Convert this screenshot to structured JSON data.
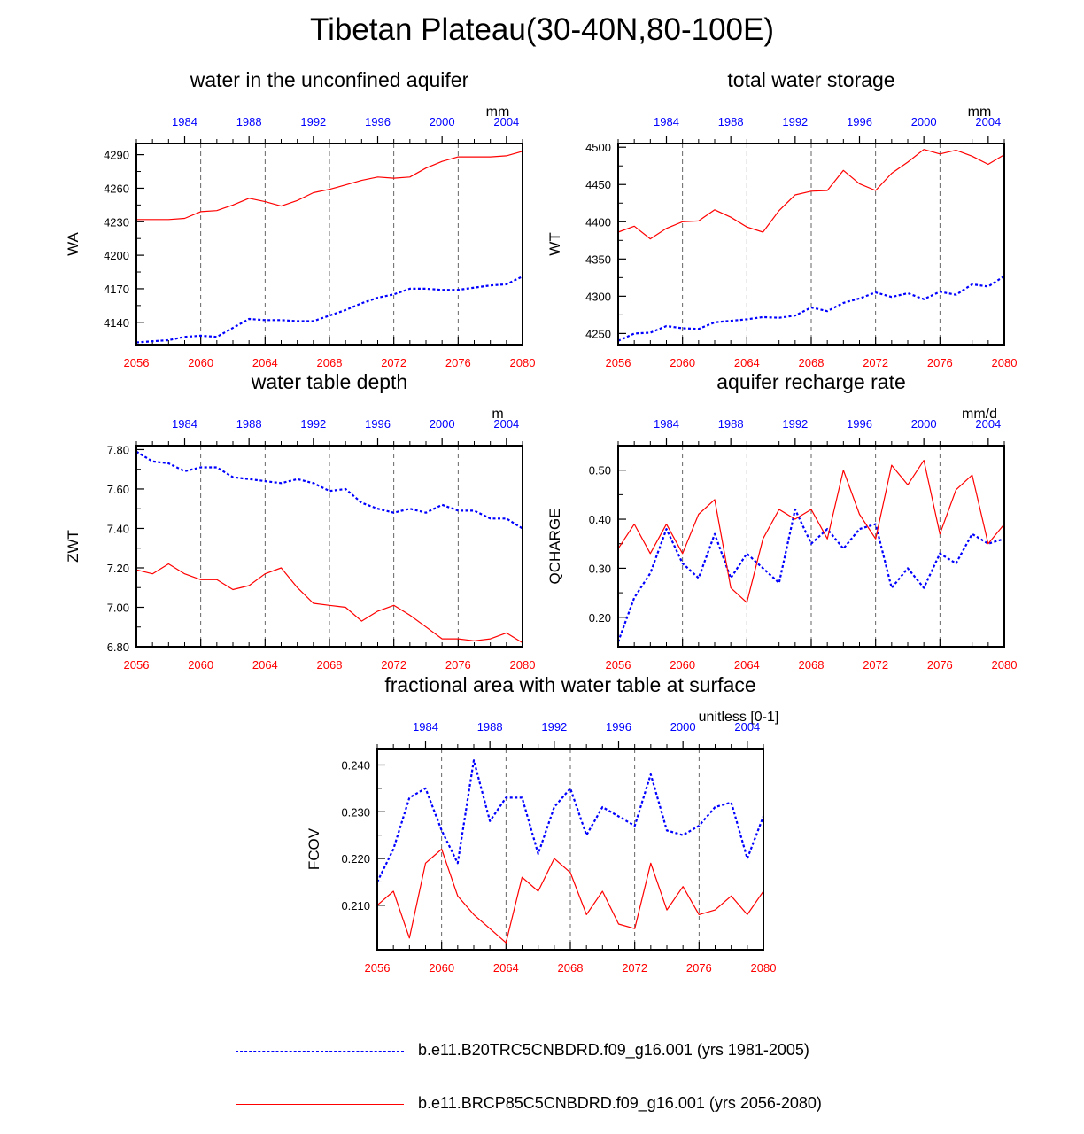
{
  "title": "Tibetan Plateau(30-40N,80-100E)",
  "colors": {
    "historical": "#0000ff",
    "future": "#ff0000",
    "axis": "#000000"
  },
  "legend": {
    "historical_label": "b.e11.B20TRC5CNBDRD.f09_g16.001 (yrs 1981-2005)",
    "future_label": "b.e11.BRCP85C5CNBDRD.f09_g16.001 (yrs 2056-2080)"
  },
  "chart_data": [
    {
      "id": "wa",
      "type": "line",
      "title": "water in the unconfined aquifer",
      "ylabel": "WA",
      "units": "mm",
      "ylim": [
        4120,
        4300
      ],
      "yticks": [
        4140,
        4170,
        4200,
        4230,
        4260,
        4290
      ],
      "ytick_labels": [
        "4140",
        "4170",
        "4200",
        "4230",
        "4260",
        "4290"
      ],
      "x_bottom_ticks": [
        "2056",
        "2060",
        "2064",
        "2068",
        "2072",
        "2076",
        "2080"
      ],
      "x_top_ticks": [
        "1984",
        "1988",
        "1992",
        "1996",
        "2000",
        "2004"
      ],
      "series": [
        {
          "name": "historical",
          "x_start": 1981,
          "values": [
            4122,
            4123,
            4124,
            4127,
            4128,
            4127,
            4135,
            4143,
            4142,
            4142,
            4141,
            4141,
            4146,
            4151,
            4157,
            4162,
            4165,
            4170,
            4170,
            4169,
            4169,
            4171,
            4173,
            4174,
            4181
          ]
        },
        {
          "name": "future",
          "x_start": 2056,
          "values": [
            4232,
            4232,
            4232,
            4233,
            4239,
            4240,
            4245,
            4251,
            4248,
            4244,
            4249,
            4256,
            4259,
            4263,
            4267,
            4270,
            4269,
            4270,
            4278,
            4284,
            4288,
            4288,
            4288,
            4289,
            4293
          ]
        }
      ]
    },
    {
      "id": "wt",
      "type": "line",
      "title": "total water storage",
      "ylabel": "WT",
      "units": "mm",
      "ylim": [
        4235,
        4505
      ],
      "yticks": [
        4250,
        4300,
        4350,
        4400,
        4450,
        4500
      ],
      "ytick_labels": [
        "4250",
        "4300",
        "4350",
        "4400",
        "4450",
        "4500"
      ],
      "x_bottom_ticks": [
        "2056",
        "2060",
        "2064",
        "2068",
        "2072",
        "2076",
        "2080"
      ],
      "x_top_ticks": [
        "1984",
        "1988",
        "1992",
        "1996",
        "2000",
        "2004"
      ],
      "series": [
        {
          "name": "historical",
          "x_start": 1981,
          "values": [
            4240,
            4250,
            4251,
            4260,
            4257,
            4256,
            4265,
            4267,
            4269,
            4272,
            4271,
            4274,
            4285,
            4280,
            4291,
            4297,
            4305,
            4299,
            4304,
            4296,
            4306,
            4302,
            4316,
            4313,
            4327
          ]
        },
        {
          "name": "future",
          "x_start": 2056,
          "values": [
            4386,
            4394,
            4377,
            4391,
            4400,
            4401,
            4416,
            4406,
            4393,
            4386,
            4415,
            4436,
            4441,
            4442,
            4469,
            4451,
            4442,
            4465,
            4480,
            4497,
            4491,
            4496,
            4488,
            4477,
            4490
          ]
        }
      ]
    },
    {
      "id": "zwt",
      "type": "line",
      "title": "water table depth",
      "ylabel": "ZWT",
      "units": "m",
      "ylim": [
        6.8,
        7.82
      ],
      "yticks": [
        6.8,
        7.0,
        7.2,
        7.4,
        7.6,
        7.8
      ],
      "ytick_labels": [
        "6.80",
        "7.00",
        "7.20",
        "7.40",
        "7.60",
        "7.80"
      ],
      "x_bottom_ticks": [
        "2056",
        "2060",
        "2064",
        "2068",
        "2072",
        "2076",
        "2080"
      ],
      "x_top_ticks": [
        "1984",
        "1988",
        "1992",
        "1996",
        "2000",
        "2004"
      ],
      "series": [
        {
          "name": "historical",
          "x_start": 1981,
          "values": [
            7.79,
            7.74,
            7.73,
            7.69,
            7.71,
            7.71,
            7.66,
            7.65,
            7.64,
            7.63,
            7.65,
            7.63,
            7.59,
            7.6,
            7.53,
            7.5,
            7.48,
            7.5,
            7.48,
            7.52,
            7.49,
            7.49,
            7.45,
            7.45,
            7.4
          ]
        },
        {
          "name": "future",
          "x_start": 2056,
          "values": [
            7.19,
            7.17,
            7.22,
            7.17,
            7.14,
            7.14,
            7.09,
            7.11,
            7.17,
            7.2,
            7.1,
            7.02,
            7.01,
            7.0,
            6.93,
            6.98,
            7.01,
            6.96,
            6.9,
            6.84,
            6.84,
            6.83,
            6.84,
            6.87,
            6.82
          ]
        }
      ]
    },
    {
      "id": "qcharge",
      "type": "line",
      "title": "aquifer recharge rate",
      "ylabel": "QCHARGE",
      "units": "mm/d",
      "ylim": [
        0.14,
        0.55
      ],
      "yticks": [
        0.2,
        0.3,
        0.4,
        0.5
      ],
      "ytick_labels": [
        "0.20",
        "0.30",
        "0.40",
        "0.50"
      ],
      "x_bottom_ticks": [
        "2056",
        "2060",
        "2064",
        "2068",
        "2072",
        "2076",
        "2080"
      ],
      "x_top_ticks": [
        "1984",
        "1988",
        "1992",
        "1996",
        "2000",
        "2004"
      ],
      "series": [
        {
          "name": "historical",
          "x_start": 1981,
          "values": [
            0.15,
            0.24,
            0.29,
            0.38,
            0.31,
            0.28,
            0.37,
            0.28,
            0.33,
            0.3,
            0.27,
            0.42,
            0.35,
            0.38,
            0.34,
            0.38,
            0.39,
            0.26,
            0.3,
            0.26,
            0.33,
            0.31,
            0.37,
            0.35,
            0.36
          ]
        },
        {
          "name": "future",
          "x_start": 2056,
          "values": [
            0.34,
            0.39,
            0.33,
            0.39,
            0.33,
            0.41,
            0.44,
            0.26,
            0.23,
            0.36,
            0.42,
            0.4,
            0.42,
            0.36,
            0.5,
            0.41,
            0.36,
            0.51,
            0.47,
            0.52,
            0.37,
            0.46,
            0.49,
            0.35,
            0.39
          ]
        }
      ]
    },
    {
      "id": "fcov",
      "type": "line",
      "title": "fractional area with water table at surface",
      "ylabel": "FCOV",
      "units": "unitless [0-1]",
      "ylim": [
        0.2005,
        0.2435
      ],
      "yticks": [
        0.21,
        0.22,
        0.23,
        0.24
      ],
      "ytick_labels": [
        "0.210",
        "0.220",
        "0.230",
        "0.240"
      ],
      "x_bottom_ticks": [
        "2056",
        "2060",
        "2064",
        "2068",
        "2072",
        "2076",
        "2080"
      ],
      "x_top_ticks": [
        "1984",
        "1988",
        "1992",
        "1996",
        "2000",
        "2004"
      ],
      "series": [
        {
          "name": "historical",
          "x_start": 1981,
          "values": [
            0.215,
            0.222,
            0.233,
            0.235,
            0.226,
            0.219,
            0.241,
            0.228,
            0.233,
            0.233,
            0.221,
            0.231,
            0.235,
            0.225,
            0.231,
            0.229,
            0.227,
            0.238,
            0.226,
            0.225,
            0.227,
            0.231,
            0.232,
            0.22,
            0.229
          ]
        },
        {
          "name": "future",
          "x_start": 2056,
          "values": [
            0.21,
            0.213,
            0.203,
            0.219,
            0.222,
            0.212,
            0.208,
            0.205,
            0.202,
            0.216,
            0.213,
            0.22,
            0.217,
            0.208,
            0.213,
            0.206,
            0.205,
            0.219,
            0.209,
            0.214,
            0.208,
            0.209,
            0.212,
            0.208,
            0.213
          ]
        }
      ]
    }
  ]
}
